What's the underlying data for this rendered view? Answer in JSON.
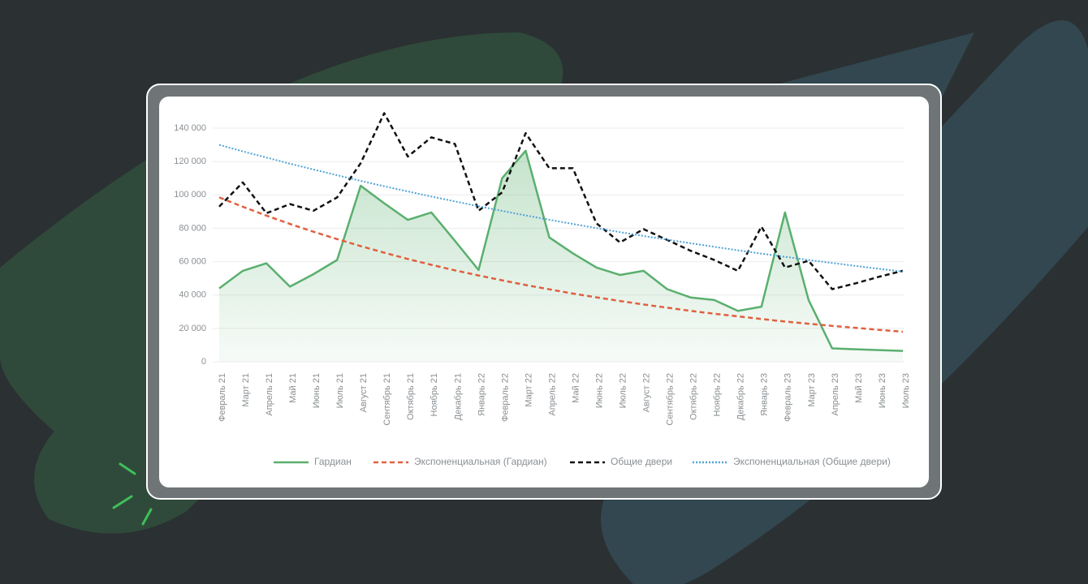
{
  "chart_data": {
    "type": "line",
    "categories": [
      "Февраль 21",
      "Март 21",
      "Апрель 21",
      "Май 21",
      "Июнь 21",
      "Июль 21",
      "Август 21",
      "Сентябрь 21",
      "Октябрь 21",
      "Ноябрь 21",
      "Декабрь 21",
      "Январь 22",
      "Февраль 22",
      "Март 22",
      "Апрель 22",
      "Май 22",
      "Июнь 22",
      "Июль 22",
      "Август 22",
      "Сентябрь 22",
      "Октябрь 22",
      "Ноябрь 22",
      "Декабрь 22",
      "Январь 23",
      "Февраль 23",
      "Март 23",
      "Апрель 23",
      "Май 23",
      "Июнь 23",
      "Июль 23"
    ],
    "series": [
      {
        "name": "Гардиан",
        "color": "#5aaf6e",
        "style": "solid",
        "fill": true,
        "values": [
          44000,
          54500,
          59000,
          45000,
          52500,
          61000,
          105500,
          95000,
          85000,
          89500,
          72500,
          55000,
          110000,
          126500,
          74500,
          65000,
          56500,
          52000,
          54500,
          43500,
          38500,
          37000,
          30500,
          33000,
          89500,
          37000,
          8000,
          7500,
          7000,
          6500
        ]
      },
      {
        "name": "Экспоненциальная (Гардиан)",
        "color": "#e0603f",
        "style": "dashed",
        "fill": false,
        "values": [
          98500,
          92900,
          87600,
          82600,
          77900,
          73500,
          69300,
          65400,
          61600,
          58100,
          54800,
          51700,
          48800,
          46000,
          43400,
          40900,
          38600,
          36400,
          34300,
          32400,
          30500,
          28800,
          27200,
          25600,
          24100,
          22800,
          21500,
          20300,
          19100,
          18000
        ]
      },
      {
        "name": "Общие двери",
        "color": "#111111",
        "style": "dashed",
        "fill": false,
        "values": [
          93000,
          107500,
          89000,
          94500,
          90500,
          98500,
          119000,
          149000,
          123000,
          134500,
          130500,
          90500,
          101500,
          137000,
          116000,
          116000,
          83000,
          71500,
          79500,
          73000,
          66500,
          61000,
          54500,
          81000,
          56500,
          60500,
          43500,
          47000,
          51000,
          54500
        ]
      },
      {
        "name": "Экспоненциальная (Общие двери)",
        "color": "#4fa3d6",
        "style": "dotted",
        "fill": false,
        "values": [
          130000,
          126100,
          122400,
          118700,
          115200,
          111800,
          108400,
          105200,
          102100,
          99000,
          96100,
          93200,
          90400,
          87700,
          85100,
          82600,
          80100,
          77700,
          75400,
          73200,
          71000,
          68900,
          66800,
          64800,
          62900,
          61000,
          59200,
          57400,
          55700,
          54000
        ]
      }
    ],
    "ylim": [
      0,
      140000
    ],
    "yticks": [
      0,
      {
        "value": 20000,
        "label": "20 000"
      },
      {
        "value": 40000,
        "label": "40 000"
      },
      {
        "value": 60000,
        "label": "60 000"
      },
      {
        "value": 80000,
        "label": "80 000"
      },
      {
        "value": 100000,
        "label": "100 000"
      },
      {
        "value": 120000,
        "label": "120 000"
      },
      {
        "value": 140000,
        "label": "140 000"
      }
    ],
    "grid": true,
    "legend": "bottom"
  }
}
